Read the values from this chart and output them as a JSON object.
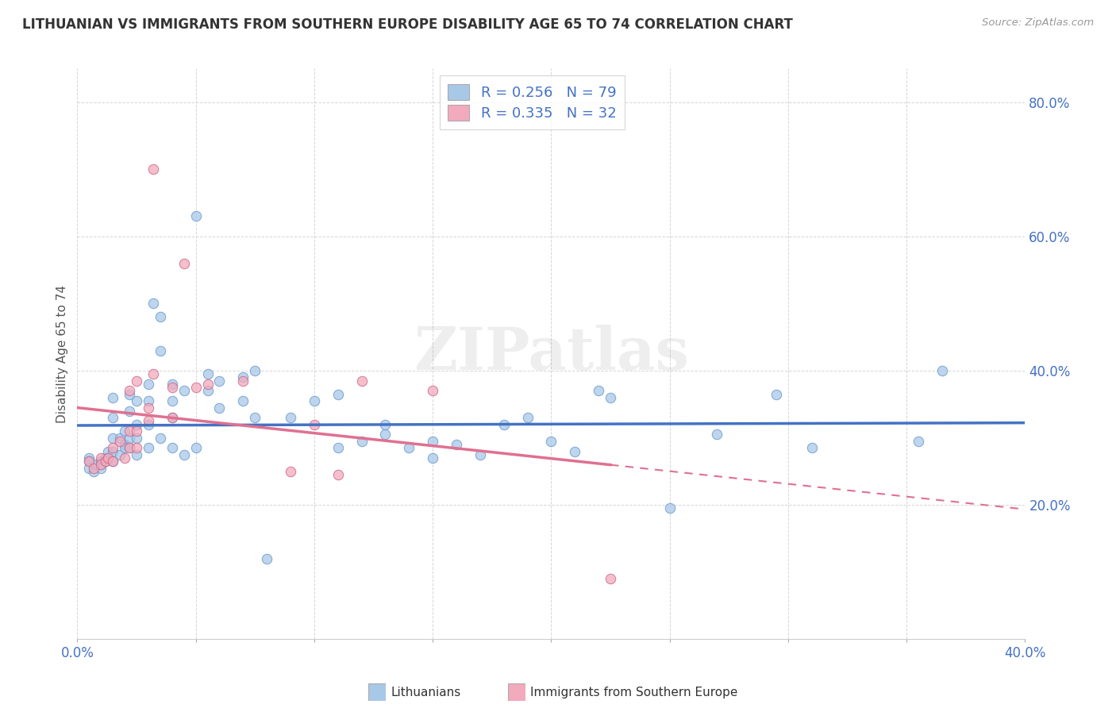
{
  "title": "LITHUANIAN VS IMMIGRANTS FROM SOUTHERN EUROPE DISABILITY AGE 65 TO 74 CORRELATION CHART",
  "source_text": "Source: ZipAtlas.com",
  "ylabel": "Disability Age 65 to 74",
  "xlim": [
    0.0,
    0.4
  ],
  "ylim": [
    0.0,
    0.85
  ],
  "xtick_positions": [
    0.0,
    0.05,
    0.1,
    0.15,
    0.2,
    0.25,
    0.3,
    0.35,
    0.4
  ],
  "xticklabels": [
    "0.0%",
    "",
    "",
    "",
    "",
    "",
    "",
    "",
    "40.0%"
  ],
  "ytick_positions": [
    0.2,
    0.4,
    0.6,
    0.8
  ],
  "ytick_labels": [
    "20.0%",
    "40.0%",
    "60.0%",
    "80.0%"
  ],
  "R_blue": 0.256,
  "N_blue": 79,
  "R_pink": 0.335,
  "N_pink": 32,
  "watermark": "ZIPatlas",
  "blue_color": "#A8C8E8",
  "pink_color": "#F2AABC",
  "blue_line_color": "#4472C4",
  "pink_line_color": "#E07090",
  "blue_scatter": [
    [
      0.005,
      0.27
    ],
    [
      0.005,
      0.265
    ],
    [
      0.005,
      0.255
    ],
    [
      0.007,
      0.25
    ],
    [
      0.008,
      0.26
    ],
    [
      0.01,
      0.265
    ],
    [
      0.01,
      0.26
    ],
    [
      0.01,
      0.255
    ],
    [
      0.012,
      0.27
    ],
    [
      0.012,
      0.265
    ],
    [
      0.013,
      0.28
    ],
    [
      0.013,
      0.27
    ],
    [
      0.015,
      0.3
    ],
    [
      0.015,
      0.265
    ],
    [
      0.015,
      0.28
    ],
    [
      0.015,
      0.33
    ],
    [
      0.015,
      0.36
    ],
    [
      0.018,
      0.275
    ],
    [
      0.018,
      0.3
    ],
    [
      0.02,
      0.29
    ],
    [
      0.02,
      0.31
    ],
    [
      0.02,
      0.285
    ],
    [
      0.022,
      0.365
    ],
    [
      0.022,
      0.34
    ],
    [
      0.022,
      0.3
    ],
    [
      0.022,
      0.285
    ],
    [
      0.025,
      0.275
    ],
    [
      0.025,
      0.3
    ],
    [
      0.025,
      0.32
    ],
    [
      0.025,
      0.355
    ],
    [
      0.03,
      0.285
    ],
    [
      0.03,
      0.32
    ],
    [
      0.03,
      0.355
    ],
    [
      0.03,
      0.38
    ],
    [
      0.032,
      0.5
    ],
    [
      0.035,
      0.48
    ],
    [
      0.035,
      0.43
    ],
    [
      0.035,
      0.3
    ],
    [
      0.04,
      0.285
    ],
    [
      0.04,
      0.33
    ],
    [
      0.04,
      0.355
    ],
    [
      0.04,
      0.38
    ],
    [
      0.045,
      0.275
    ],
    [
      0.045,
      0.37
    ],
    [
      0.05,
      0.285
    ],
    [
      0.05,
      0.63
    ],
    [
      0.055,
      0.395
    ],
    [
      0.055,
      0.37
    ],
    [
      0.06,
      0.345
    ],
    [
      0.06,
      0.385
    ],
    [
      0.07,
      0.355
    ],
    [
      0.07,
      0.39
    ],
    [
      0.075,
      0.33
    ],
    [
      0.075,
      0.4
    ],
    [
      0.08,
      0.12
    ],
    [
      0.09,
      0.33
    ],
    [
      0.1,
      0.355
    ],
    [
      0.11,
      0.285
    ],
    [
      0.11,
      0.365
    ],
    [
      0.12,
      0.295
    ],
    [
      0.13,
      0.305
    ],
    [
      0.13,
      0.32
    ],
    [
      0.14,
      0.285
    ],
    [
      0.15,
      0.27
    ],
    [
      0.15,
      0.295
    ],
    [
      0.16,
      0.29
    ],
    [
      0.17,
      0.275
    ],
    [
      0.18,
      0.32
    ],
    [
      0.19,
      0.33
    ],
    [
      0.2,
      0.295
    ],
    [
      0.21,
      0.28
    ],
    [
      0.22,
      0.37
    ],
    [
      0.225,
      0.36
    ],
    [
      0.25,
      0.195
    ],
    [
      0.27,
      0.305
    ],
    [
      0.295,
      0.365
    ],
    [
      0.31,
      0.285
    ],
    [
      0.355,
      0.295
    ],
    [
      0.365,
      0.4
    ]
  ],
  "pink_scatter": [
    [
      0.005,
      0.265
    ],
    [
      0.007,
      0.255
    ],
    [
      0.01,
      0.27
    ],
    [
      0.01,
      0.26
    ],
    [
      0.012,
      0.265
    ],
    [
      0.013,
      0.27
    ],
    [
      0.015,
      0.265
    ],
    [
      0.015,
      0.285
    ],
    [
      0.018,
      0.295
    ],
    [
      0.02,
      0.27
    ],
    [
      0.022,
      0.285
    ],
    [
      0.022,
      0.31
    ],
    [
      0.022,
      0.37
    ],
    [
      0.025,
      0.285
    ],
    [
      0.025,
      0.31
    ],
    [
      0.025,
      0.385
    ],
    [
      0.03,
      0.325
    ],
    [
      0.03,
      0.345
    ],
    [
      0.032,
      0.395
    ],
    [
      0.032,
      0.7
    ],
    [
      0.04,
      0.33
    ],
    [
      0.04,
      0.375
    ],
    [
      0.045,
      0.56
    ],
    [
      0.05,
      0.375
    ],
    [
      0.055,
      0.38
    ],
    [
      0.07,
      0.385
    ],
    [
      0.09,
      0.25
    ],
    [
      0.1,
      0.32
    ],
    [
      0.11,
      0.245
    ],
    [
      0.12,
      0.385
    ],
    [
      0.15,
      0.37
    ],
    [
      0.225,
      0.09
    ]
  ]
}
